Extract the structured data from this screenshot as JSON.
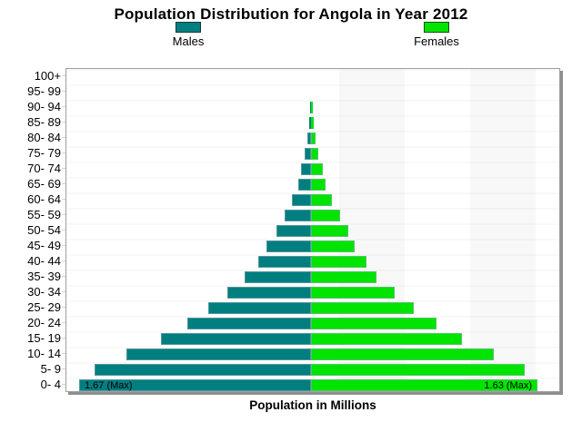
{
  "title": "Population Distribution for Angola in Year 2012",
  "xlabel": "Population in Millions",
  "legend": {
    "male_label": "Males",
    "female_label": "Females"
  },
  "colors": {
    "male": "#007e80",
    "female": "#00e400",
    "male_swatch_border": "#0c3c3c",
    "female_swatch_border": "#0c500c"
  },
  "max_labels": {
    "male": "1.67 (Max)",
    "female": "1.63 (Max)"
  },
  "chart_data": {
    "type": "bar",
    "subtype": "population-pyramid",
    "title": "Population Distribution for Angola in Year 2012",
    "xlabel": "Population in Millions",
    "unit": "millions of people",
    "legend_position": "top",
    "x_axis": {
      "max_each_side": 1.78,
      "numeric_tick_labels_visible": false
    },
    "categories_top_to_bottom": [
      "100+",
      "95- 99",
      "90- 94",
      "85- 89",
      "80- 84",
      "75- 79",
      "70- 74",
      "65- 69",
      "60- 64",
      "55- 59",
      "50- 54",
      "45- 49",
      "40- 44",
      "35- 39",
      "30- 34",
      "25- 29",
      "20- 24",
      "15- 19",
      "10- 14",
      "5- 9",
      "0- 4"
    ],
    "series": [
      {
        "name": "Males",
        "side": "left",
        "color": "#007e80",
        "values": [
          0.001,
          0.002,
          0.005,
          0.013,
          0.025,
          0.043,
          0.075,
          0.095,
          0.14,
          0.19,
          0.25,
          0.32,
          0.38,
          0.48,
          0.6,
          0.74,
          0.89,
          1.08,
          1.33,
          1.56,
          1.67
        ]
      },
      {
        "name": "Females",
        "side": "right",
        "color": "#00e400",
        "values": [
          0.001,
          0.003,
          0.01,
          0.02,
          0.035,
          0.05,
          0.082,
          0.108,
          0.154,
          0.207,
          0.272,
          0.318,
          0.397,
          0.475,
          0.6,
          0.744,
          0.902,
          1.09,
          1.32,
          1.54,
          1.63
        ]
      }
    ],
    "annotations": [
      {
        "text": "1.67 (Max)",
        "series": "Males",
        "category": "0- 4",
        "position": "inside-left-end"
      },
      {
        "text": "1.63 (Max)",
        "series": "Females",
        "category": "0- 4",
        "position": "inside-right-end"
      }
    ]
  }
}
